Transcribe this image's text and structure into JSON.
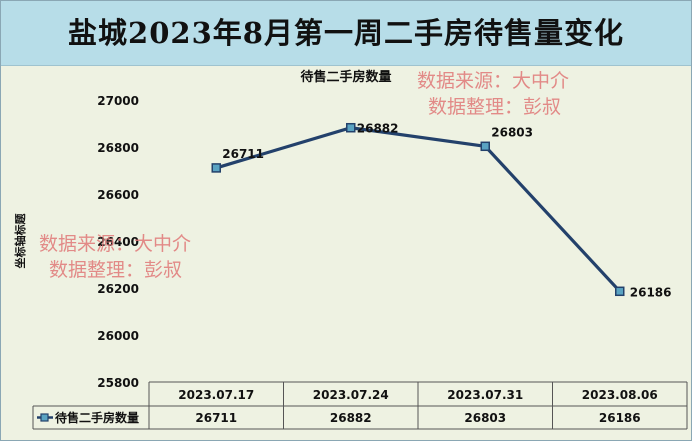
{
  "page_title": "盐城2023年8月第一周二手房待售量变化",
  "watermarks": [
    "数据来源：大中介",
    "数据整理：彭叔",
    "数据来源：大中介",
    "数据整理：彭叔"
  ],
  "colors": {
    "line": "#23416b",
    "marker": "#5aa3c2",
    "title_bg": "#b7dde8",
    "plot_bg": "#eef2e2"
  },
  "chart_data": {
    "type": "line",
    "title": "待售二手房数量",
    "xlabel": "",
    "ylabel": "坐标轴标题",
    "categories": [
      "2023.07.17",
      "2023.07.24",
      "2023.07.31",
      "2023.08.06"
    ],
    "series": [
      {
        "name": "待售二手房数量",
        "values": [
          26711,
          26882,
          26803,
          26186
        ]
      }
    ],
    "ylim": [
      25800,
      27000
    ],
    "yticks": [
      25800,
      26000,
      26200,
      26400,
      26600,
      26800,
      27000
    ],
    "data_labels": [
      "26711",
      "26882",
      "26803",
      "26186"
    ],
    "data_table": true,
    "grid": false
  }
}
